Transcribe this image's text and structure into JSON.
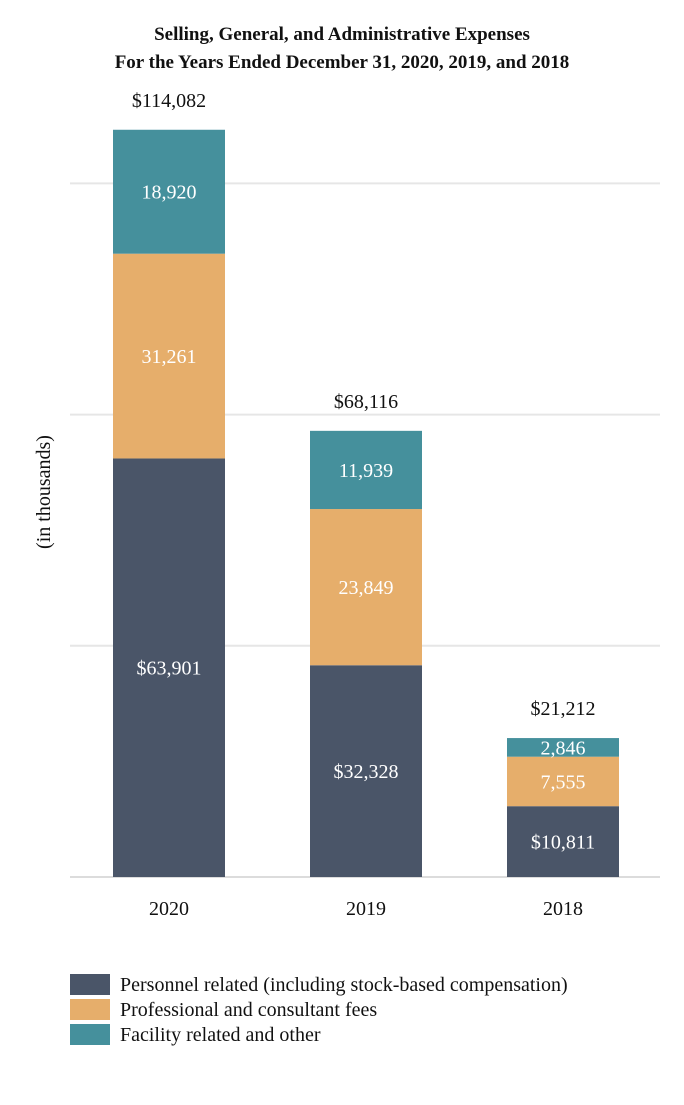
{
  "chart_data": {
    "type": "bar",
    "stacked": true,
    "title": "Selling, General, and Administrative Expenses",
    "subtitle": "For the Years Ended December 31, 2020, 2019, and 2018",
    "xlabel": "",
    "ylabel": "(in thousands)",
    "ylim": [
      0,
      120000
    ],
    "grid": true,
    "categories": [
      "2020",
      "2019",
      "2018"
    ],
    "series": [
      {
        "name": "Personnel related (including stock-based compensation)",
        "color": "#4a5568",
        "values": [
          63901,
          32328,
          10811
        ],
        "labels": [
          "$63,901",
          "$32,328",
          "$10,811"
        ]
      },
      {
        "name": "Professional and consultant fees",
        "color": "#e6ae6b",
        "values": [
          31261,
          23849,
          7555
        ],
        "labels": [
          "31,261",
          "23,849",
          "7,555"
        ]
      },
      {
        "name": "Facility related and other",
        "color": "#45909c",
        "values": [
          18920,
          11939,
          2846
        ],
        "labels": [
          "18,920",
          "11,939",
          "2,846"
        ]
      }
    ],
    "totals": [
      114082,
      68116,
      21212
    ],
    "total_labels": [
      "$114,082",
      "$68,116",
      "$21,212"
    ],
    "legend_position": "bottom-left"
  }
}
